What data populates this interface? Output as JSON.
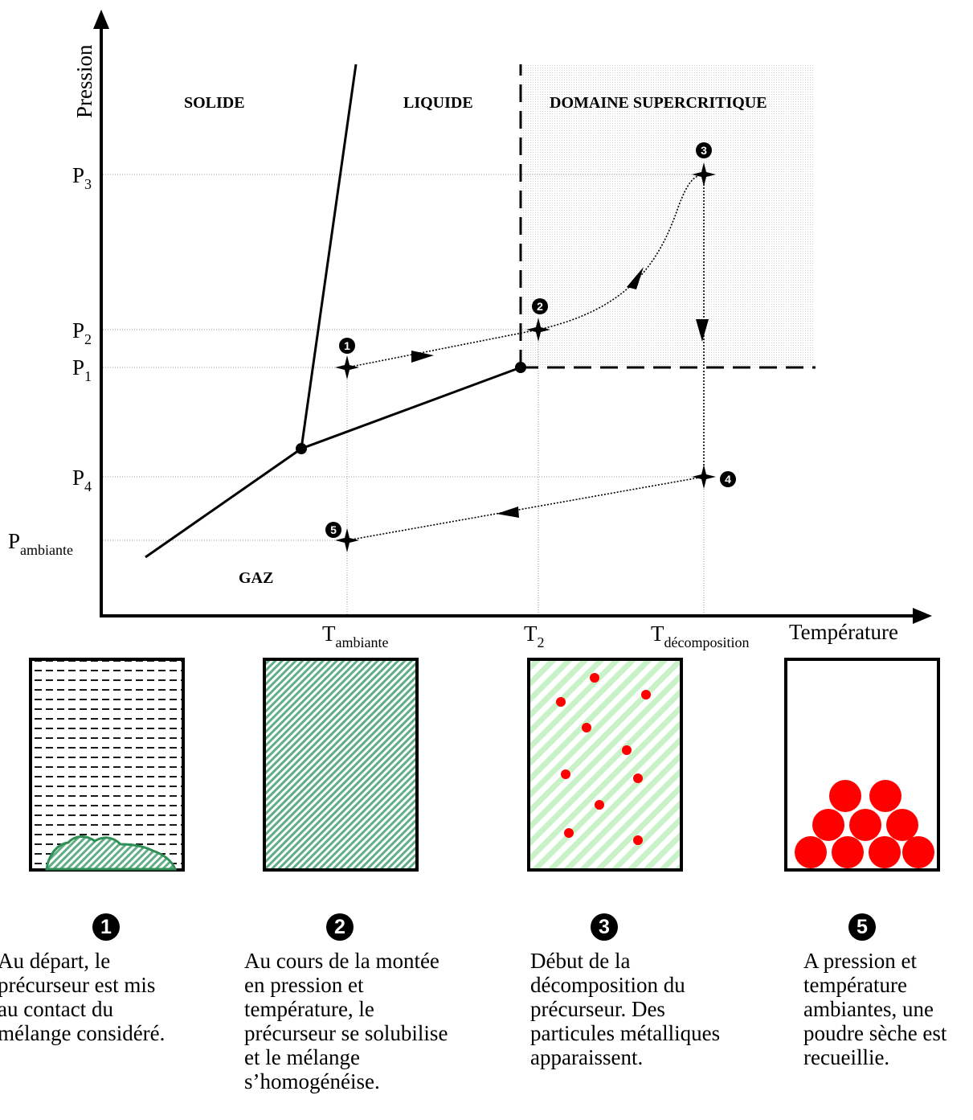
{
  "axes": {
    "y_label": "Pression",
    "x_label": "Température",
    "y_ticks": [
      {
        "base": "P",
        "sub": "3"
      },
      {
        "base": "P",
        "sub": "2"
      },
      {
        "base": "P",
        "sub": "1"
      },
      {
        "base": "P",
        "sub": "4"
      },
      {
        "base": "P",
        "sub": "ambiante"
      }
    ],
    "x_ticks": [
      {
        "base": "T",
        "sub": "ambiante"
      },
      {
        "base": "T",
        "sub": "2"
      },
      {
        "base": "T",
        "sub": "décomposition"
      }
    ]
  },
  "regions": {
    "solide": "SOLIDE",
    "liquide": "LIQUIDE",
    "supercritique": "DOMAINE SUPERCRITIQUE",
    "gaz": "GAZ"
  },
  "points": {
    "p1": "1",
    "p2": "2",
    "p3": "3",
    "p4": "4",
    "p5": "5"
  },
  "steps": [
    {
      "number": "1",
      "caption": "Au départ, le\nprécurseur est mis\nau contact du\nmélange considéré."
    },
    {
      "number": "2",
      "caption": "Au cours de la montée\nen pression et\ntempérature, le\nprécurseur se solubilise\net le mélange\ns’homogénéise."
    },
    {
      "number": "3",
      "caption": "Début de la\ndécomposition du\nprécurseur. Des\nparticules métalliques\napparaissent."
    },
    {
      "number": "5",
      "caption": "A pression et\ntempérature\nambiantes, une\npoudre sèche est\nrecueillie."
    }
  ],
  "colors": {
    "hatch_green": "#5fae85",
    "light_green": "#c9f2c9",
    "particle_red": "#ff0000"
  }
}
